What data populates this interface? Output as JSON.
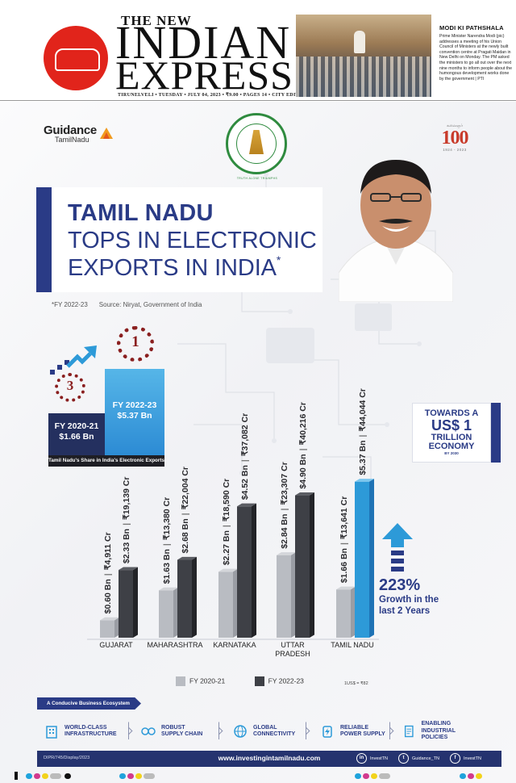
{
  "masthead": {
    "the": "THE NEW",
    "indian": "INDIAN",
    "express": "EXPRESS",
    "dateline": "TIRUNELVELI • TUESDAY • JULY 04, 2023 • ₹9.00 • PAGES 14 • CITY EDITION",
    "story_head": "MODI KI PATHSHALA",
    "story_text": "Prime Minister Narendra Modi (pic) addresses a meeting of his Union Council of Ministers at the newly built convention centre at Pragati Maidan in New Delhi on Monday. The PM asked the ministers to go all out over the next nine months to inform people about the humongous development works done by the government | PTI"
  },
  "logos": {
    "guidance_word": "Guidance",
    "guidance_sub": "TamilNadu",
    "emblem_caption": "TRUTH ALONE TRIUMPHS",
    "hundred_top": "கலைஞர்",
    "hundred_num": "100",
    "hundred_years": "1924 - 2023"
  },
  "headline": {
    "line1": "TAMIL NADU",
    "line2": "TOPS IN ELECTRONIC",
    "line3": "EXPORTS IN INDIA",
    "mark": "*"
  },
  "source": {
    "note": "*FY 2022-23",
    "text": "Source: Niryat, Government of India"
  },
  "share": {
    "rank_current": "1",
    "rank_previous": "3",
    "prev_label": "FY 2020-21",
    "prev_value": "$1.66 Bn",
    "curr_label": "FY 2022-23",
    "curr_value": "$5.37 Bn",
    "caption": "Tamil Nadu's Share in India's Electronic Exports"
  },
  "trillion": {
    "line1": "TOWARDS A",
    "line2": "US$ 1",
    "line3": "TRILLION",
    "line4": "ECONOMY",
    "line5": "BY 2030"
  },
  "growth": {
    "pct": "223%",
    "line1": "Growth in the",
    "line2": "last 2 Years"
  },
  "chart_data": {
    "type": "bar",
    "categories": [
      "GUJARAT",
      "MAHARASHTRA",
      "KARNATAKA",
      "UTTAR PRADESH",
      "TAMIL NADU"
    ],
    "series": [
      {
        "name": "FY 2020-21",
        "values": [
          0.6,
          1.63,
          2.27,
          2.84,
          1.66
        ],
        "labels_bn": [
          "$0.60 Bn",
          "$1.63 Bn",
          "$2.27 Bn",
          "$2.84 Bn",
          "$1.66 Bn"
        ],
        "labels_cr": [
          "₹4,911 Cr",
          "₹13,380 Cr",
          "₹18,590 Cr",
          "₹23,307 Cr",
          "₹13,641 Cr"
        ]
      },
      {
        "name": "FY 2022-23",
        "values": [
          2.33,
          2.68,
          4.52,
          4.9,
          5.37
        ],
        "labels_bn": [
          "$2.33 Bn",
          "$2.68 Bn",
          "$4.52 Bn",
          "$4.90 Bn",
          "$5.37 Bn"
        ],
        "labels_cr": [
          "₹19,139 Cr",
          "₹22,004 Cr",
          "₹37,082 Cr",
          "₹40,216 Cr",
          "₹44,044 Cr"
        ]
      }
    ],
    "ylim": [
      0,
      6
    ],
    "colors": {
      "prev": "#b9bcc2",
      "curr": "#3e4046",
      "highlight": "#2d9ad8"
    },
    "legend_position": "bottom"
  },
  "legend": {
    "prev": "FY 2020-21",
    "curr": "FY 2022-23",
    "rate": "1US$ = ₹82"
  },
  "ecosystem": {
    "tag": "A Conducive Business Ecosystem",
    "items": [
      {
        "line1": "WORLD-CLASS",
        "line2": "INFRASTRUCTURE",
        "icon": "building-icon"
      },
      {
        "line1": "ROBUST",
        "line2": "SUPPLY CHAIN",
        "icon": "supply-chain-icon"
      },
      {
        "line1": "GLOBAL",
        "line2": "CONNECTIVITY",
        "icon": "globe-icon"
      },
      {
        "line1": "RELIABLE",
        "line2": "POWER SUPPLY",
        "icon": "power-icon"
      },
      {
        "line1": "ENABLING",
        "line2": "INDUSTRIAL POLICIES",
        "icon": "policy-icon"
      }
    ]
  },
  "footer": {
    "dipr": "DIPR/745/Display/2023",
    "website": "www.investingintamilnadu.com",
    "linkedin": "InvestTN",
    "twitter": "Guidance_TN",
    "facebook": "InvestTN"
  }
}
